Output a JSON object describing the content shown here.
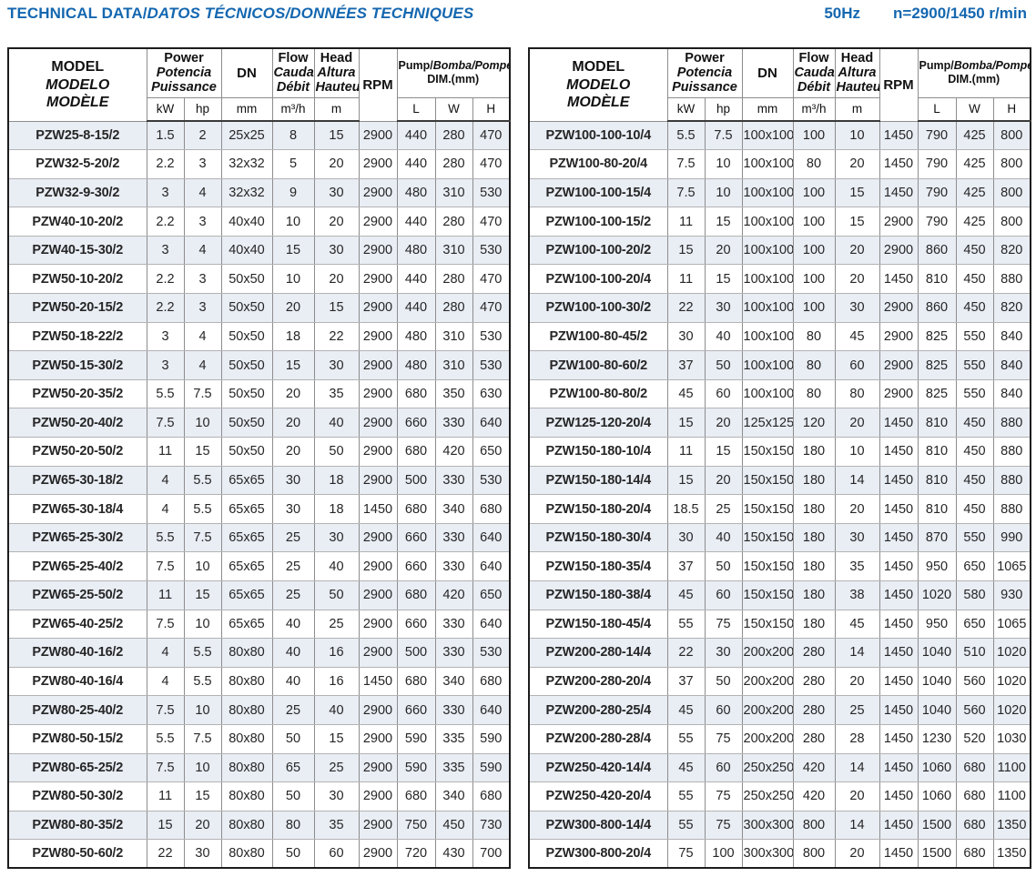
{
  "page": {
    "title_regular": "TECHNICAL DATA/",
    "title_italic": "DATOS TÉCNICOS/DONNÉES TECHNIQUES",
    "frequency": "50Hz",
    "speed": "n=2900/1450 r/min",
    "accent_color": "#1467b0",
    "shaded_row_color": "#e9edf4"
  },
  "columns": [
    "model",
    "power_kw",
    "power_hp",
    "dn_mm",
    "flow_m3h",
    "head_m",
    "rpm",
    "dim_l",
    "dim_w",
    "dim_h"
  ],
  "columns_header": {
    "model_lines": [
      "MODEL",
      "MODELO",
      "MODÈLE"
    ],
    "power_lines": [
      "Power",
      "Potencia",
      "Puissance"
    ],
    "dn_label": "DN",
    "flow_lines": [
      "Flow",
      "Caudal",
      "Débit"
    ],
    "head_lines": [
      "Head",
      "Altura",
      "Hauteur"
    ],
    "rpm_label": "RPM",
    "pump_dim_regular": "Pump/",
    "pump_dim_italic": "Bomba/Pompe",
    "pump_dim_line2": "DIM.(mm)",
    "unit_kw": "kW",
    "unit_hp": "hp",
    "unit_mm": "mm",
    "unit_flow": "m³/h",
    "unit_m": "m",
    "unit_l": "L",
    "unit_w": "W",
    "unit_h": "H"
  },
  "left_table": {
    "rows": [
      [
        "PZW25-8-15/2",
        "1.5",
        "2",
        "25x25",
        "8",
        "15",
        "2900",
        "440",
        "280",
        "470"
      ],
      [
        "PZW32-5-20/2",
        "2.2",
        "3",
        "32x32",
        "5",
        "20",
        "2900",
        "440",
        "280",
        "470"
      ],
      [
        "PZW32-9-30/2",
        "3",
        "4",
        "32x32",
        "9",
        "30",
        "2900",
        "480",
        "310",
        "530"
      ],
      [
        "PZW40-10-20/2",
        "2.2",
        "3",
        "40x40",
        "10",
        "20",
        "2900",
        "440",
        "280",
        "470"
      ],
      [
        "PZW40-15-30/2",
        "3",
        "4",
        "40x40",
        "15",
        "30",
        "2900",
        "480",
        "310",
        "530"
      ],
      [
        "PZW50-10-20/2",
        "2.2",
        "3",
        "50x50",
        "10",
        "20",
        "2900",
        "440",
        "280",
        "470"
      ],
      [
        "PZW50-20-15/2",
        "2.2",
        "3",
        "50x50",
        "20",
        "15",
        "2900",
        "440",
        "280",
        "470"
      ],
      [
        "PZW50-18-22/2",
        "3",
        "4",
        "50x50",
        "18",
        "22",
        "2900",
        "480",
        "310",
        "530"
      ],
      [
        "PZW50-15-30/2",
        "3",
        "4",
        "50x50",
        "15",
        "30",
        "2900",
        "480",
        "310",
        "530"
      ],
      [
        "PZW50-20-35/2",
        "5.5",
        "7.5",
        "50x50",
        "20",
        "35",
        "2900",
        "680",
        "350",
        "630"
      ],
      [
        "PZW50-20-40/2",
        "7.5",
        "10",
        "50x50",
        "20",
        "40",
        "2900",
        "660",
        "330",
        "640"
      ],
      [
        "PZW50-20-50/2",
        "11",
        "15",
        "50x50",
        "20",
        "50",
        "2900",
        "680",
        "420",
        "650"
      ],
      [
        "PZW65-30-18/2",
        "4",
        "5.5",
        "65x65",
        "30",
        "18",
        "2900",
        "500",
        "330",
        "530"
      ],
      [
        "PZW65-30-18/4",
        "4",
        "5.5",
        "65x65",
        "30",
        "18",
        "1450",
        "680",
        "340",
        "680"
      ],
      [
        "PZW65-25-30/2",
        "5.5",
        "7.5",
        "65x65",
        "25",
        "30",
        "2900",
        "660",
        "330",
        "640"
      ],
      [
        "PZW65-25-40/2",
        "7.5",
        "10",
        "65x65",
        "25",
        "40",
        "2900",
        "660",
        "330",
        "640"
      ],
      [
        "PZW65-25-50/2",
        "11",
        "15",
        "65x65",
        "25",
        "50",
        "2900",
        "680",
        "420",
        "650"
      ],
      [
        "PZW65-40-25/2",
        "7.5",
        "10",
        "65x65",
        "40",
        "25",
        "2900",
        "660",
        "330",
        "640"
      ],
      [
        "PZW80-40-16/2",
        "4",
        "5.5",
        "80x80",
        "40",
        "16",
        "2900",
        "500",
        "330",
        "530"
      ],
      [
        "PZW80-40-16/4",
        "4",
        "5.5",
        "80x80",
        "40",
        "16",
        "1450",
        "680",
        "340",
        "680"
      ],
      [
        "PZW80-25-40/2",
        "7.5",
        "10",
        "80x80",
        "25",
        "40",
        "2900",
        "660",
        "330",
        "640"
      ],
      [
        "PZW80-50-15/2",
        "5.5",
        "7.5",
        "80x80",
        "50",
        "15",
        "2900",
        "590",
        "335",
        "590"
      ],
      [
        "PZW80-65-25/2",
        "7.5",
        "10",
        "80x80",
        "65",
        "25",
        "2900",
        "590",
        "335",
        "590"
      ],
      [
        "PZW80-50-30/2",
        "11",
        "15",
        "80x80",
        "50",
        "30",
        "2900",
        "680",
        "340",
        "680"
      ],
      [
        "PZW80-80-35/2",
        "15",
        "20",
        "80x80",
        "80",
        "35",
        "2900",
        "750",
        "450",
        "730"
      ],
      [
        "PZW80-50-60/2",
        "22",
        "30",
        "80x80",
        "50",
        "60",
        "2900",
        "720",
        "430",
        "700"
      ]
    ]
  },
  "right_table": {
    "rows": [
      [
        "PZW100-100-10/4",
        "5.5",
        "7.5",
        "100x100",
        "100",
        "10",
        "1450",
        "790",
        "425",
        "800"
      ],
      [
        "PZW100-80-20/4",
        "7.5",
        "10",
        "100x100",
        "80",
        "20",
        "1450",
        "790",
        "425",
        "800"
      ],
      [
        "PZW100-100-15/4",
        "7.5",
        "10",
        "100x100",
        "100",
        "15",
        "1450",
        "790",
        "425",
        "800"
      ],
      [
        "PZW100-100-15/2",
        "11",
        "15",
        "100x100",
        "100",
        "15",
        "2900",
        "790",
        "425",
        "800"
      ],
      [
        "PZW100-100-20/2",
        "15",
        "20",
        "100x100",
        "100",
        "20",
        "2900",
        "860",
        "450",
        "820"
      ],
      [
        "PZW100-100-20/4",
        "11",
        "15",
        "100x100",
        "100",
        "20",
        "1450",
        "810",
        "450",
        "880"
      ],
      [
        "PZW100-100-30/2",
        "22",
        "30",
        "100x100",
        "100",
        "30",
        "2900",
        "860",
        "450",
        "820"
      ],
      [
        "PZW100-80-45/2",
        "30",
        "40",
        "100x100",
        "80",
        "45",
        "2900",
        "825",
        "550",
        "840"
      ],
      [
        "PZW100-80-60/2",
        "37",
        "50",
        "100x100",
        "80",
        "60",
        "2900",
        "825",
        "550",
        "840"
      ],
      [
        "PZW100-80-80/2",
        "45",
        "60",
        "100x100",
        "80",
        "80",
        "2900",
        "825",
        "550",
        "840"
      ],
      [
        "PZW125-120-20/4",
        "15",
        "20",
        "125x125",
        "120",
        "20",
        "1450",
        "810",
        "450",
        "880"
      ],
      [
        "PZW150-180-10/4",
        "11",
        "15",
        "150x150",
        "180",
        "10",
        "1450",
        "810",
        "450",
        "880"
      ],
      [
        "PZW150-180-14/4",
        "15",
        "20",
        "150x150",
        "180",
        "14",
        "1450",
        "810",
        "450",
        "880"
      ],
      [
        "PZW150-180-20/4",
        "18.5",
        "25",
        "150x150",
        "180",
        "20",
        "1450",
        "810",
        "450",
        "880"
      ],
      [
        "PZW150-180-30/4",
        "30",
        "40",
        "150x150",
        "180",
        "30",
        "1450",
        "870",
        "550",
        "990"
      ],
      [
        "PZW150-180-35/4",
        "37",
        "50",
        "150x150",
        "180",
        "35",
        "1450",
        "950",
        "650",
        "1065"
      ],
      [
        "PZW150-180-38/4",
        "45",
        "60",
        "150x150",
        "180",
        "38",
        "1450",
        "1020",
        "580",
        "930"
      ],
      [
        "PZW150-180-45/4",
        "55",
        "75",
        "150x150",
        "180",
        "45",
        "1450",
        "950",
        "650",
        "1065"
      ],
      [
        "PZW200-280-14/4",
        "22",
        "30",
        "200x200",
        "280",
        "14",
        "1450",
        "1040",
        "510",
        "1020"
      ],
      [
        "PZW200-280-20/4",
        "37",
        "50",
        "200x200",
        "280",
        "20",
        "1450",
        "1040",
        "560",
        "1020"
      ],
      [
        "PZW200-280-25/4",
        "45",
        "60",
        "200x200",
        "280",
        "25",
        "1450",
        "1040",
        "560",
        "1020"
      ],
      [
        "PZW200-280-28/4",
        "55",
        "75",
        "200x200",
        "280",
        "28",
        "1450",
        "1230",
        "520",
        "1030"
      ],
      [
        "PZW250-420-14/4",
        "45",
        "60",
        "250x250",
        "420",
        "14",
        "1450",
        "1060",
        "680",
        "1100"
      ],
      [
        "PZW250-420-20/4",
        "55",
        "75",
        "250x250",
        "420",
        "20",
        "1450",
        "1060",
        "680",
        "1100"
      ],
      [
        "PZW300-800-14/4",
        "55",
        "75",
        "300x300",
        "800",
        "14",
        "1450",
        "1500",
        "680",
        "1350"
      ],
      [
        "PZW300-800-20/4",
        "75",
        "100",
        "300x300",
        "800",
        "20",
        "1450",
        "1500",
        "680",
        "1350"
      ]
    ]
  }
}
